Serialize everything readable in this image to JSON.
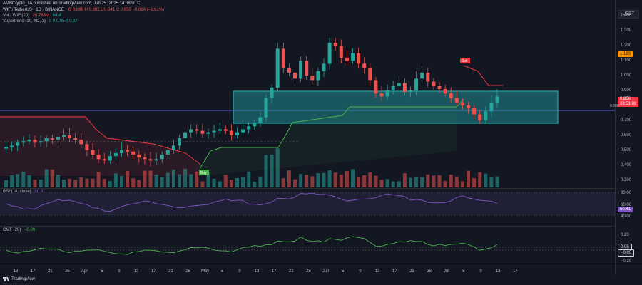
{
  "publisher_line": "AMBCrypto_TA published on TradingView.com, Jun 25, 2025 14:08 UTC",
  "symbol": {
    "title": "WIF / TetherUS · 1D · BINANCE",
    "ohlc": "O 0.869 H 0.895 L 0.841 C 0.856 −0.014 (−1.61%)",
    "vol": "Vol · WIF (20)",
    "vol_value": "28.783M",
    "vol_value2": "64M",
    "supertrend": "Supertrend (10, hl2, 3)",
    "supertrend_values": "0  0  0.95  0  0.87"
  },
  "currency_button": "USDT",
  "price_axis": [
    "1.400",
    "1.300",
    "1.200",
    "1.100",
    "1.000",
    "0.900",
    "0.800",
    "0.700",
    "0.600",
    "0.500",
    "0.400",
    "0.300"
  ],
  "price_tags": {
    "sell_level": "1.183",
    "last_price": "0.856",
    "countdown": "09:51:08",
    "sub": "0.800"
  },
  "rsi": {
    "label": "RSI (14, close)",
    "value": "50.41",
    "axis": [
      "80.00",
      "60.00",
      "40.00"
    ]
  },
  "cmf": {
    "label": "CMF (20)",
    "value": "−0.00",
    "axis": [
      "0.20",
      "0.05",
      "−0.05",
      "−0.20"
    ]
  },
  "signals": {
    "buy": "Buy",
    "sell": "Sell"
  },
  "x_axis": [
    "13",
    "17",
    "21",
    "25",
    "Apr",
    "5",
    "9",
    "13",
    "17",
    "21",
    "25",
    "May",
    "5",
    "9",
    "13",
    "17",
    "21",
    "25",
    "Jun",
    "5",
    "9",
    "13",
    "17",
    "21",
    "25",
    "Jul",
    "5",
    "9",
    "13",
    "17"
  ],
  "logo_text": "TradingView",
  "colors": {
    "up": "#26a69a",
    "down": "#ef5350",
    "supertrend_up": "#4caf50",
    "supertrend_down": "#f23645",
    "zone": "#1f8a8e",
    "rsi": "#7e57c2",
    "cmf": "#4caf50"
  }
}
